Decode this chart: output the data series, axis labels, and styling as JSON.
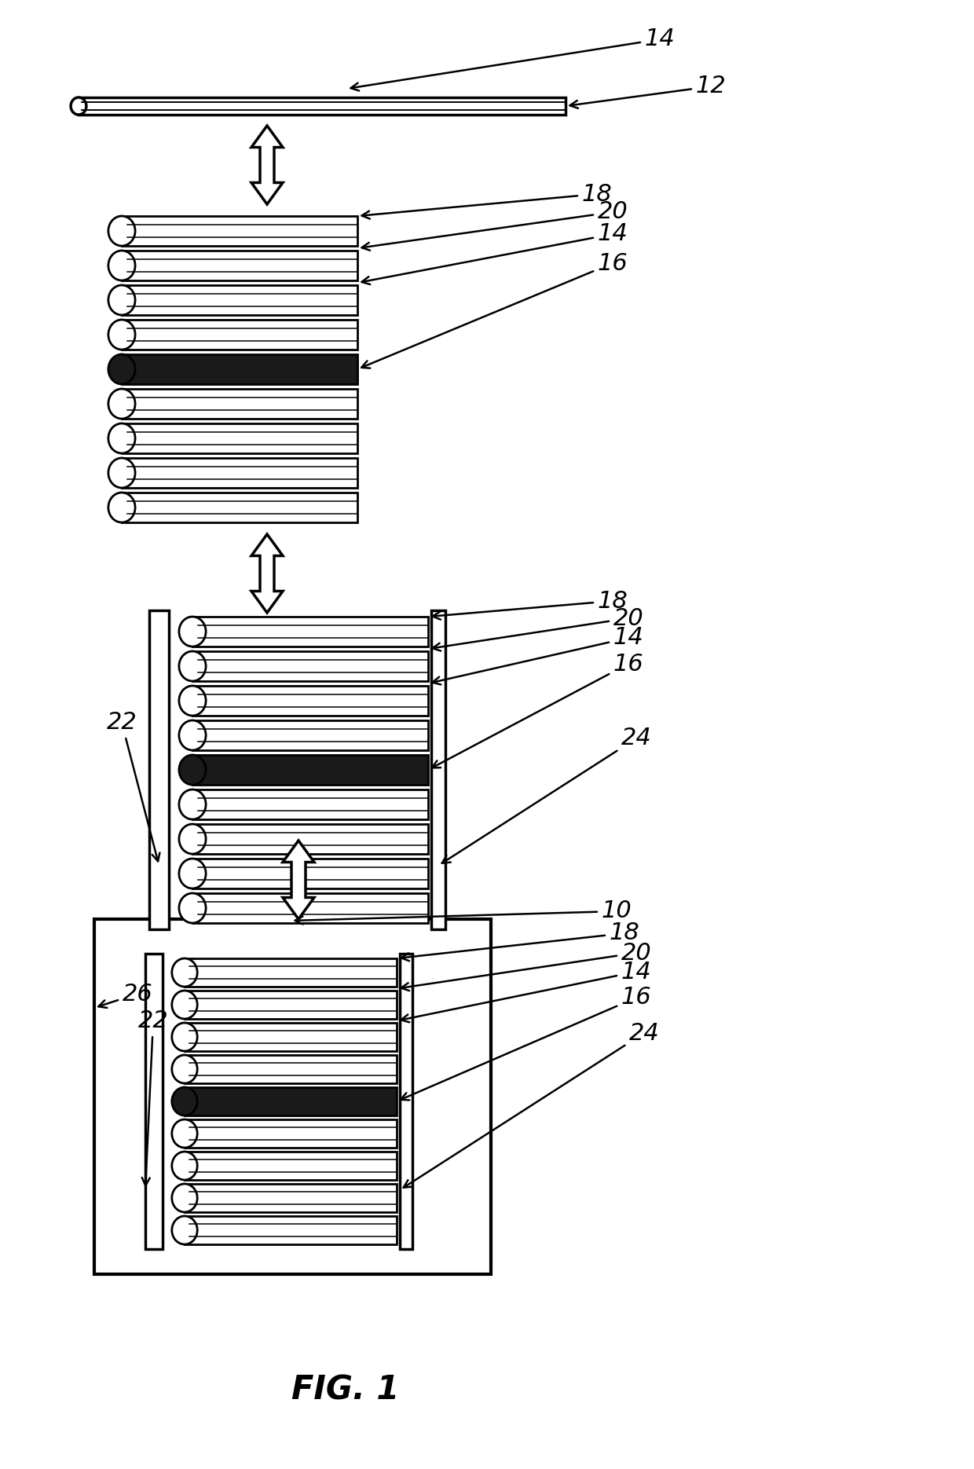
{
  "bg_color": "#ffffff",
  "line_color": "#000000",
  "fig_width": 12.4,
  "fig_height": 18.7,
  "fig_label": "FIG. 1"
}
